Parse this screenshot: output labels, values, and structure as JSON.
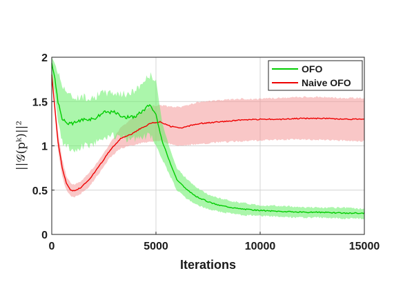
{
  "chart_data": {
    "type": "line",
    "title": "",
    "xlabel": "Iterations",
    "ylabel": "||𝒢(pᵏ)||²",
    "xlim": [
      0,
      15000
    ],
    "ylim": [
      0,
      2
    ],
    "xticks": [
      "0",
      "5000",
      "10000",
      "15000"
    ],
    "yticks": [
      "0",
      "0.5",
      "1",
      "1.5",
      "2"
    ],
    "grid": true,
    "legend_position": "top-right",
    "series": [
      {
        "name": "OFO",
        "color": "#00cc00",
        "band_color": "#66ee66",
        "x": [
          0,
          150,
          300,
          500,
          800,
          1000,
          1500,
          2000,
          2500,
          3000,
          3500,
          4000,
          4500,
          4700,
          5000,
          5300,
          5700,
          6000,
          6500,
          7000,
          7500,
          8000,
          9000,
          10000,
          11000,
          12000,
          13000,
          14000,
          15000
        ],
        "mean": [
          1.95,
          1.75,
          1.5,
          1.3,
          1.25,
          1.25,
          1.3,
          1.3,
          1.38,
          1.38,
          1.32,
          1.33,
          1.42,
          1.47,
          1.35,
          1.05,
          0.8,
          0.62,
          0.5,
          0.42,
          0.37,
          0.33,
          0.29,
          0.27,
          0.26,
          0.25,
          0.25,
          0.24,
          0.24
        ],
        "upper": [
          2.0,
          1.95,
          1.82,
          1.7,
          1.58,
          1.55,
          1.55,
          1.55,
          1.6,
          1.6,
          1.58,
          1.62,
          1.75,
          1.8,
          1.75,
          1.25,
          0.95,
          0.75,
          0.62,
          0.52,
          0.45,
          0.41,
          0.36,
          0.33,
          0.32,
          0.31,
          0.3,
          0.3,
          0.29
        ],
        "lower": [
          1.85,
          1.55,
          1.25,
          1.05,
          0.98,
          0.95,
          1.0,
          1.02,
          1.1,
          1.12,
          1.08,
          1.08,
          1.1,
          1.12,
          1.0,
          0.85,
          0.65,
          0.5,
          0.4,
          0.33,
          0.29,
          0.26,
          0.22,
          0.21,
          0.2,
          0.19,
          0.19,
          0.18,
          0.18
        ]
      },
      {
        "name": "Naive OFO",
        "color": "#ee0000",
        "band_color": "#f49090",
        "x": [
          0,
          100,
          300,
          500,
          700,
          900,
          1100,
          1400,
          1800,
          2300,
          2800,
          3300,
          3800,
          4300,
          4800,
          5200,
          5700,
          6200,
          7000,
          8000,
          9000,
          10000,
          11000,
          12000,
          13000,
          14000,
          15000
        ],
        "mean": [
          1.8,
          1.55,
          1.05,
          0.75,
          0.58,
          0.5,
          0.49,
          0.53,
          0.62,
          0.78,
          0.95,
          1.08,
          1.13,
          1.2,
          1.26,
          1.27,
          1.22,
          1.2,
          1.25,
          1.27,
          1.29,
          1.3,
          1.3,
          1.31,
          1.31,
          1.3,
          1.3
        ],
        "upper": [
          1.85,
          1.62,
          1.15,
          0.85,
          0.66,
          0.58,
          0.56,
          0.6,
          0.7,
          0.85,
          1.03,
          1.2,
          1.3,
          1.38,
          1.45,
          1.46,
          1.44,
          1.44,
          1.49,
          1.51,
          1.53,
          1.53,
          1.54,
          1.55,
          1.55,
          1.54,
          1.54
        ],
        "lower": [
          1.75,
          1.48,
          0.95,
          0.65,
          0.5,
          0.43,
          0.42,
          0.46,
          0.54,
          0.7,
          0.87,
          0.97,
          1.0,
          1.03,
          1.05,
          1.06,
          1.02,
          1.0,
          1.02,
          1.04,
          1.05,
          1.06,
          1.07,
          1.07,
          1.07,
          1.06,
          1.05
        ]
      }
    ]
  }
}
